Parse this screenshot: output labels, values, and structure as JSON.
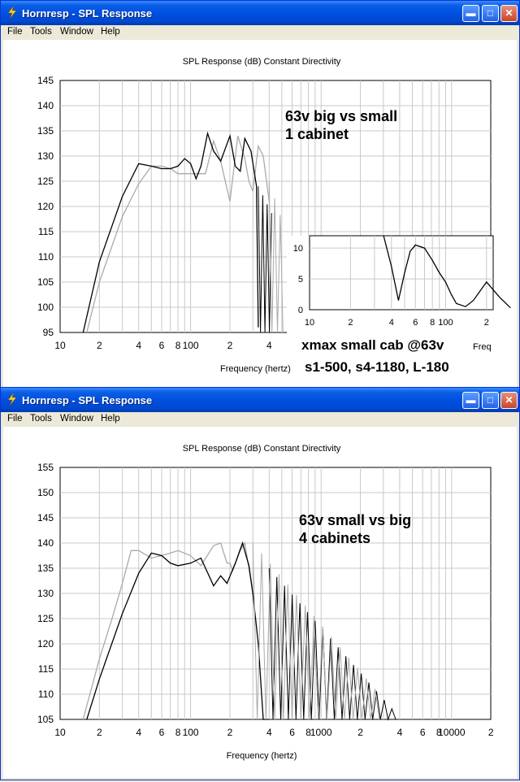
{
  "window1": {
    "title": "Hornresp - SPL Response",
    "menu": [
      "File",
      "Tools",
      "Window",
      "Help"
    ],
    "chart_title": "SPL Response (dB)   Constant Directivity",
    "xlabel": "Frequency (hertz)",
    "yticks": [
      "145",
      "140",
      "135",
      "130",
      "125",
      "120",
      "115",
      "110",
      "105",
      "100",
      "95"
    ],
    "xticks": [
      "10",
      "2",
      "4",
      "6",
      "8",
      "100",
      "2",
      "4"
    ],
    "annotation_line1": "63v big vs small",
    "annotation_line2": "1 cabinet",
    "inset_yticks": [
      "10",
      "5",
      "0"
    ],
    "inset_xticks": [
      "10",
      "2",
      "4",
      "6",
      "8",
      "100",
      "2"
    ],
    "inset_caption": "xmax small cab @63v",
    "inset_caption_cut": "Freq",
    "footer_note": "s1-500, s4-1180, L-180"
  },
  "window2": {
    "title": "Hornresp - SPL Response",
    "menu": [
      "File",
      "Tools",
      "Window",
      "Help"
    ],
    "chart_title": "SPL Response (dB)   Constant Directivity",
    "xlabel": "Frequency (hertz)",
    "yticks": [
      "155",
      "150",
      "145",
      "140",
      "135",
      "130",
      "125",
      "120",
      "115",
      "110",
      "105"
    ],
    "xticks": [
      "10",
      "2",
      "4",
      "6",
      "8",
      "100",
      "2",
      "4",
      "6",
      "8",
      "1000",
      "2",
      "4",
      "6",
      "8",
      "10000",
      "2"
    ],
    "annotation_line1": "63v small vs big",
    "annotation_line2": "4 cabinets"
  },
  "chart_data": [
    {
      "type": "line",
      "title": "SPL Response (dB)   Constant Directivity",
      "xlabel": "Frequency (hertz)",
      "ylabel": "",
      "xscale": "log",
      "xlim": [
        10,
        440
      ],
      "ylim": [
        95,
        145
      ],
      "series": [
        {
          "color": "#000000",
          "x": [
            15,
            20,
            30,
            40,
            50,
            60,
            70,
            80,
            90,
            100,
            110,
            120,
            135,
            150,
            170,
            200,
            220,
            240,
            260,
            290,
            320,
            330
          ],
          "y": [
            95,
            109,
            122,
            128.5,
            128,
            127.5,
            127.5,
            128,
            129.5,
            128.5,
            125.5,
            128,
            134.5,
            131,
            129,
            134,
            128,
            127,
            133.5,
            131,
            124,
            96
          ]
        },
        {
          "color": "#aaaaaa",
          "x": [
            16,
            20,
            30,
            40,
            50,
            60,
            70,
            80,
            90,
            100,
            110,
            130,
            150,
            170,
            200,
            230,
            260,
            280,
            300,
            330,
            360,
            400
          ],
          "y": [
            95,
            105,
            118,
            124.5,
            128,
            128,
            127.5,
            126.5,
            126.5,
            126.5,
            126.5,
            126.5,
            133,
            129,
            121,
            134,
            129.5,
            125,
            123,
            132,
            130,
            121
          ]
        }
      ]
    },
    {
      "type": "line",
      "title": "xmax small cab @63v",
      "xscale": "log",
      "xlim": [
        10,
        300
      ],
      "ylim": [
        0,
        12
      ],
      "series": [
        {
          "color": "#000000",
          "x": [
            35,
            40,
            45,
            50,
            55,
            60,
            70,
            80,
            90,
            100,
            110,
            120,
            140,
            160,
            200,
            250,
            300
          ],
          "y": [
            12,
            7,
            1.5,
            6,
            9.5,
            10.5,
            10,
            8,
            6,
            4.5,
            2.5,
            1,
            0.5,
            1.5,
            4.5,
            2,
            0.3
          ]
        }
      ]
    },
    {
      "type": "line",
      "title": "SPL Response (dB)   Constant Directivity",
      "xlabel": "Frequency (hertz)",
      "ylabel": "",
      "xscale": "log",
      "xlim": [
        10,
        20000
      ],
      "ylim": [
        105,
        155
      ],
      "series": [
        {
          "color": "#000000",
          "x": [
            16,
            20,
            30,
            40,
            50,
            60,
            70,
            80,
            100,
            120,
            150,
            170,
            190,
            220,
            250,
            280,
            300,
            330,
            360,
            400
          ],
          "y": [
            105,
            113,
            126,
            134,
            138,
            137.5,
            136,
            135.5,
            136,
            137,
            131.5,
            133.5,
            132,
            136,
            140,
            135.5,
            130,
            120,
            105,
            105
          ]
        },
        {
          "color": "#aaaaaa",
          "x": [
            15,
            20,
            25,
            30,
            35,
            40,
            50,
            60,
            70,
            80,
            100,
            120,
            150,
            170,
            190,
            200,
            210,
            240,
            260,
            280,
            300
          ],
          "y": [
            105,
            117,
            125,
            132,
            138.5,
            138.5,
            137,
            137.5,
            138,
            138.5,
            137.5,
            135.5,
            139.5,
            140,
            136,
            136,
            134.5,
            138.5,
            140,
            135,
            130
          ]
        }
      ]
    }
  ]
}
